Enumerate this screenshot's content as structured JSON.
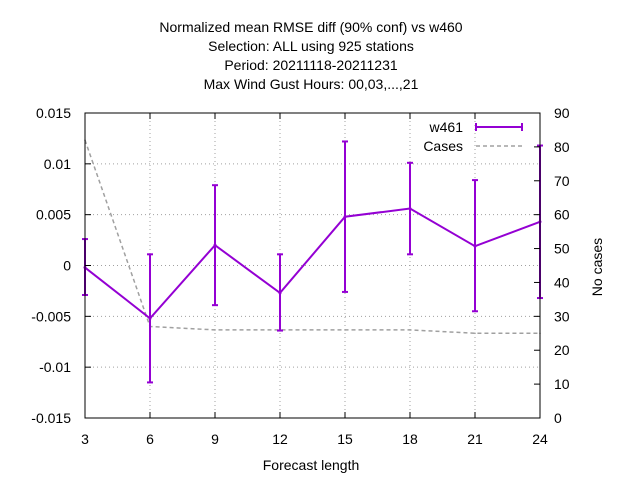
{
  "chart_data": {
    "type": "line",
    "title_lines": [
      "Normalized mean RMSE diff (90% conf) vs w460",
      "Selection: ALL using   925 stations",
      "Period: 20211118-20211231",
      "Max Wind Gust   Hours:  00,03,...,21"
    ],
    "xlabel": "Forecast length",
    "ylabel": "",
    "y2label": "No cases",
    "x": [
      3,
      6,
      9,
      12,
      15,
      18,
      21,
      24
    ],
    "xlim": [
      3,
      24
    ],
    "ylim": [
      -0.015,
      0.015
    ],
    "y2lim": [
      0,
      90
    ],
    "x_ticks": [
      "3",
      "6",
      "9",
      "12",
      "15",
      "18",
      "21",
      "24"
    ],
    "y_ticks": [
      "-0.015",
      "-0.01",
      "-0.005",
      "0",
      "0.005",
      "0.01",
      "0.015"
    ],
    "y2_ticks": [
      "0",
      "10",
      "20",
      "30",
      "40",
      "50",
      "60",
      "70",
      "80",
      "90"
    ],
    "grid": true,
    "legend_position": "top-right",
    "series": [
      {
        "name": "w461",
        "axis": "left",
        "color": "#9400d3",
        "values": [
          -0.0002,
          -0.0052,
          0.002,
          -0.0027,
          0.0048,
          0.0056,
          0.0019,
          0.0043
        ],
        "err_low": [
          -0.0029,
          -0.0115,
          -0.0039,
          -0.0064,
          -0.0026,
          0.0011,
          -0.0045,
          -0.0032
        ],
        "err_high": [
          0.0026,
          0.0011,
          0.0079,
          0.0011,
          0.0122,
          0.0101,
          0.0084,
          0.0118
        ]
      },
      {
        "name": "Cases",
        "axis": "right",
        "color": "#a0a0a0",
        "dashed": true,
        "values": [
          82,
          27,
          26,
          26,
          26,
          26,
          25,
          25
        ]
      }
    ]
  }
}
